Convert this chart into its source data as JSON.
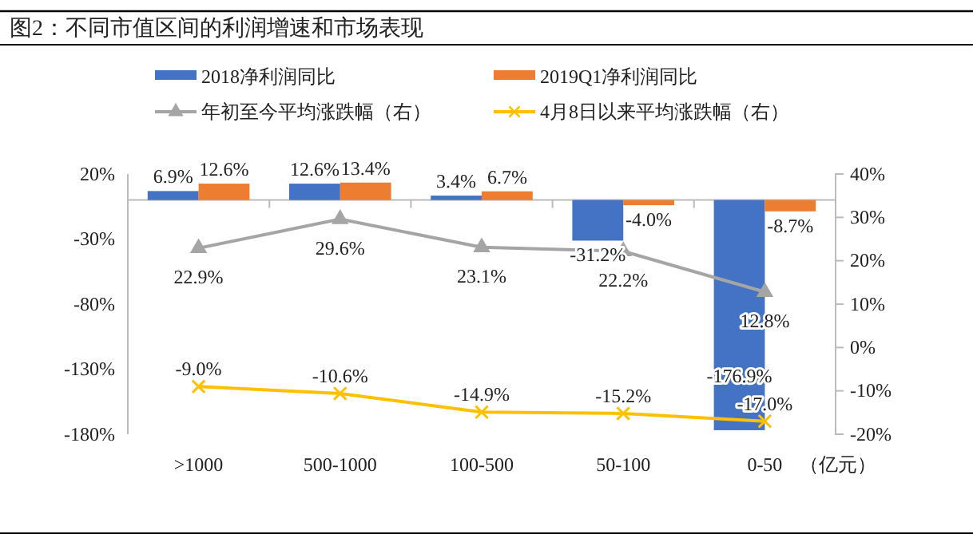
{
  "chart_data": {
    "type": "bar",
    "title": "图2：不同市值区间的利润增速和市场表现",
    "xlabel": "（亿元）",
    "categories": [
      ">1000",
      "500-1000",
      "100-500",
      "50-100",
      "0-50"
    ],
    "series": [
      {
        "name": "2018净利润同比",
        "color": "#4472c4",
        "values": [
          6.9,
          12.6,
          3.4,
          -31.2,
          -176.9
        ],
        "value_labels": [
          "6.9%",
          "12.6%",
          "3.4%",
          "-31.2%",
          "-176.9%"
        ]
      },
      {
        "name": "2019Q1净利润同比",
        "color": "#ed7d31",
        "values": [
          12.6,
          13.4,
          6.7,
          -4.0,
          -8.7
        ],
        "value_labels": [
          "12.6%",
          "13.4%",
          "6.7%",
          "-4.0%",
          "-8.7%"
        ]
      },
      {
        "name": "年初至今平均涨跌幅（右）",
        "type": "line",
        "axis": "y2",
        "color": "#a5a5a5",
        "marker": "triangle",
        "values": [
          22.9,
          29.6,
          23.1,
          22.2,
          12.8
        ],
        "value_labels": [
          "22.9%",
          "29.6%",
          "23.1%",
          "22.2%",
          "12.8%"
        ]
      },
      {
        "name": "4月8日以来平均涨跌幅（右）",
        "type": "line",
        "axis": "y2",
        "color": "#ffc000",
        "marker": "cross",
        "values": [
          -9.0,
          -10.6,
          -14.9,
          -15.2,
          -17.0
        ],
        "value_labels": [
          "-9.0%",
          "-10.6%",
          "-14.9%",
          "-15.2%",
          "-17.0%"
        ]
      }
    ],
    "ylim": [
      -180,
      20
    ],
    "yticks": [
      {
        "value": 20,
        "label": "20%"
      },
      {
        "value": -30,
        "label": "-30%"
      },
      {
        "value": -80,
        "label": "-80%"
      },
      {
        "value": -130,
        "label": "-130%"
      },
      {
        "value": -180,
        "label": "-180%"
      }
    ],
    "y2lim": [
      -20,
      40
    ],
    "y2ticks": [
      {
        "value": 40,
        "label": "40%"
      },
      {
        "value": 30,
        "label": "30%"
      },
      {
        "value": 20,
        "label": "20%"
      },
      {
        "value": 10,
        "label": "10%"
      },
      {
        "value": 0,
        "label": "0%"
      },
      {
        "value": -10,
        "label": "-10%"
      },
      {
        "value": -20,
        "label": "-20%"
      }
    ],
    "legend": "top",
    "grid": false,
    "line_style": "solid"
  }
}
